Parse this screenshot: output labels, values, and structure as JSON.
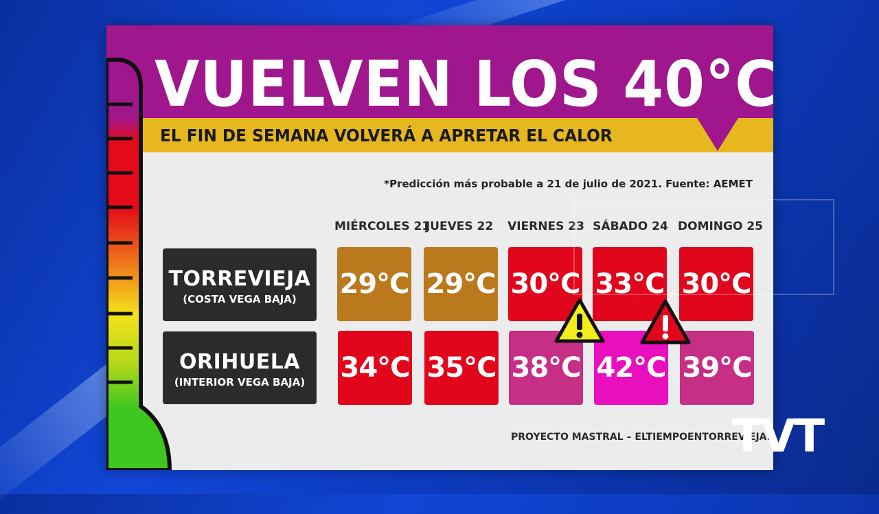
{
  "title": "VUELVEN LOS 40°C",
  "subtitle": "EL FIN DE SEMANA VOLVERÁ A APRETAR EL CALOR",
  "source_note": "*Predicción más probable a 21 de julio de 2021. Fuente: AEMET",
  "days": [
    "MIÉRCOLES 21",
    "JUEVES 22",
    "VIERNES 23",
    "SÁBADO 24",
    "DOMINGO 25"
  ],
  "cities": [
    {
      "name": "TORREVIEJA",
      "region": "(COSTA VEGA BAJA)",
      "temps": [
        "29°C",
        "29°C",
        "30°C",
        "33°C",
        "30°C"
      ],
      "colors": [
        "#b9791c",
        "#b9791c",
        "#e1061b",
        "#e1061b",
        "#e1061b"
      ]
    },
    {
      "name": "ORIHUELA",
      "region": "(INTERIOR VEGA BAJA)",
      "temps": [
        "34°C",
        "35°C",
        "38°C",
        "42°C",
        "39°C"
      ],
      "colors": [
        "#e1061b",
        "#e1061b",
        "#c72e86",
        "#ea0fbe",
        "#c72e86"
      ]
    }
  ],
  "warnings": [
    {
      "icon": "warning-yellow-icon",
      "color": "#f2ee19"
    },
    {
      "icon": "warning-red-icon",
      "color": "#e1061b"
    }
  ],
  "footer": "PROYECTO MASTRAL – ELTIEMPOENTORREVIEJA.E",
  "logo": "TVT",
  "colors": {
    "header": "#a0168d",
    "subbar": "#e6b71e",
    "background": "#ececec"
  }
}
